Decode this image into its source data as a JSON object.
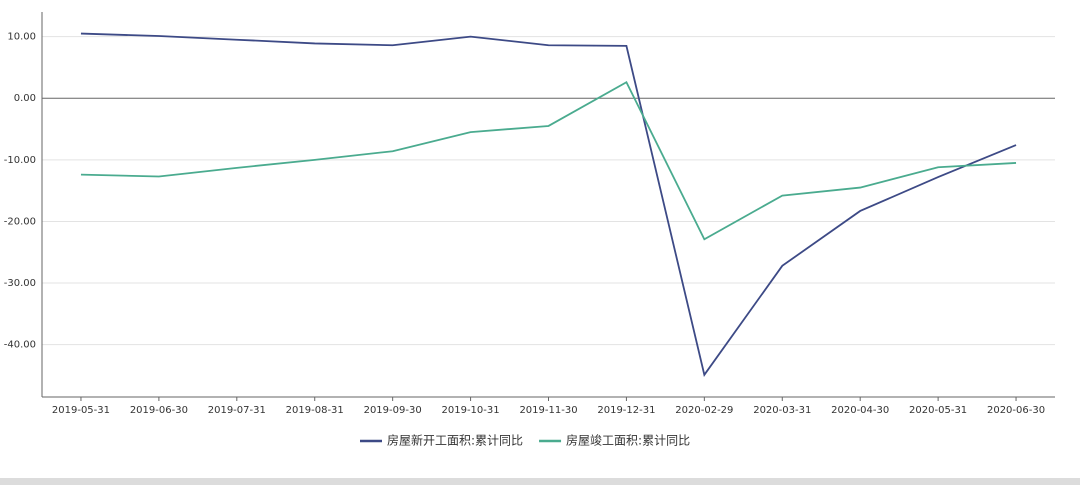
{
  "chart_data": {
    "type": "line",
    "categories": [
      "2019-05-31",
      "2019-06-30",
      "2019-07-31",
      "2019-08-31",
      "2019-09-30",
      "2019-10-31",
      "2019-11-30",
      "2019-12-31",
      "2020-02-29",
      "2020-03-31",
      "2020-04-30",
      "2020-05-31",
      "2020-06-30"
    ],
    "series": [
      {
        "name": "房屋新开工面积:累计同比",
        "color": "#3d4a86",
        "values": [
          10.5,
          10.1,
          9.5,
          8.9,
          8.6,
          10.0,
          8.6,
          8.5,
          -44.9,
          -27.2,
          -18.3,
          -12.8,
          -7.6
        ]
      },
      {
        "name": "房屋竣工面积:累计同比",
        "color": "#4aab8f",
        "values": [
          -12.4,
          -12.7,
          -11.3,
          -10.0,
          -8.6,
          -5.5,
          -4.5,
          2.6,
          -22.9,
          -15.8,
          -14.5,
          -11.2,
          -10.5
        ]
      }
    ],
    "ylim": [
      -48.5,
      14
    ],
    "yticks": [
      {
        "value": -40,
        "label": "-40.00"
      },
      {
        "value": -30,
        "label": "-30.00"
      },
      {
        "value": -20,
        "label": "-20.00"
      },
      {
        "value": -10,
        "label": "-10.00"
      },
      {
        "value": 0,
        "label": "0.00"
      },
      {
        "value": 10,
        "label": "10.00"
      }
    ],
    "grid": true
  }
}
